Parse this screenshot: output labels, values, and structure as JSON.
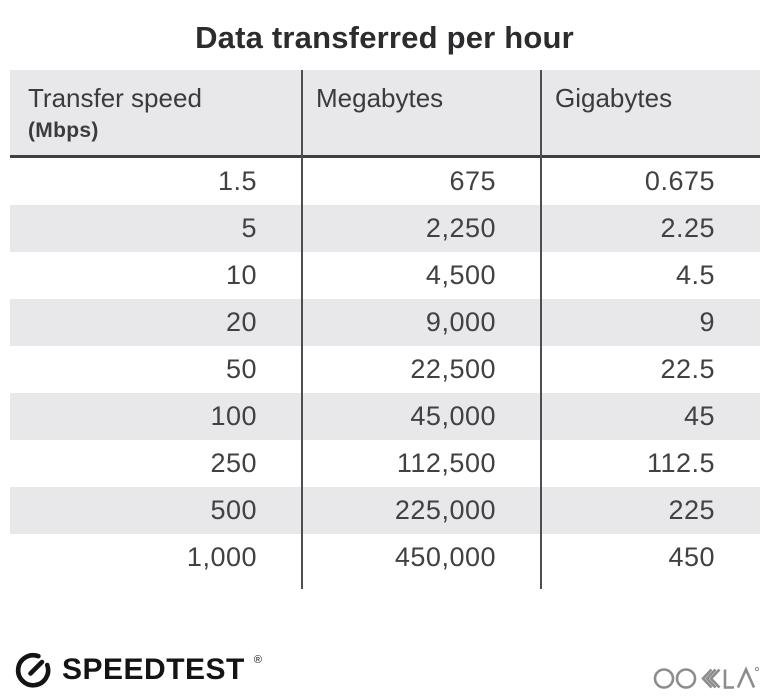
{
  "title": "Data transferred per hour",
  "table": {
    "header": {
      "col1_label": "Transfer speed",
      "col1_sublabel": "(Mbps)",
      "col2_label": "Megabytes",
      "col3_label": "Gigabytes"
    },
    "rows": [
      [
        "1.5",
        "675",
        "0.675"
      ],
      [
        "5",
        "2,250",
        "2.25"
      ],
      [
        "10",
        "4,500",
        "4.5"
      ],
      [
        "20",
        "9,000",
        "9"
      ],
      [
        "50",
        "22,500",
        "22.5"
      ],
      [
        "100",
        "45,000",
        "45"
      ],
      [
        "250",
        "112,500",
        "112.5"
      ],
      [
        "500",
        "225,000",
        "225"
      ],
      [
        "1,000",
        "450,000",
        "450"
      ]
    ]
  },
  "footer": {
    "speedtest_label": "SPEEDTEST",
    "speedtest_reg": "®",
    "ookla_label": "OOKLA"
  },
  "icons": {
    "speedtest_gauge": "gauge-icon",
    "ookla_wordmark": "ookla-logo"
  },
  "colors": {
    "background": "#ffffff",
    "title_text": "#2c2b2d",
    "header_bg": "#e8e7ea",
    "row_stripe": "#e8e7ea",
    "number_text": "#414042",
    "header_border": "#3f3e40",
    "column_divider": "#4e4d50",
    "speedtest_black": "#141414",
    "ookla_gray": "#8c8c8c"
  },
  "chart_data": {
    "type": "table",
    "title": "Data transferred per hour",
    "columns": [
      "Transfer speed (Mbps)",
      "Megabytes",
      "Gigabytes"
    ],
    "rows": [
      [
        1.5,
        675,
        0.675
      ],
      [
        5,
        2250,
        2.25
      ],
      [
        10,
        4500,
        4.5
      ],
      [
        20,
        9000,
        9
      ],
      [
        50,
        22500,
        22.5
      ],
      [
        100,
        45000,
        45
      ],
      [
        250,
        112500,
        112.5
      ],
      [
        500,
        225000,
        225
      ],
      [
        1000,
        450000,
        450
      ]
    ]
  }
}
